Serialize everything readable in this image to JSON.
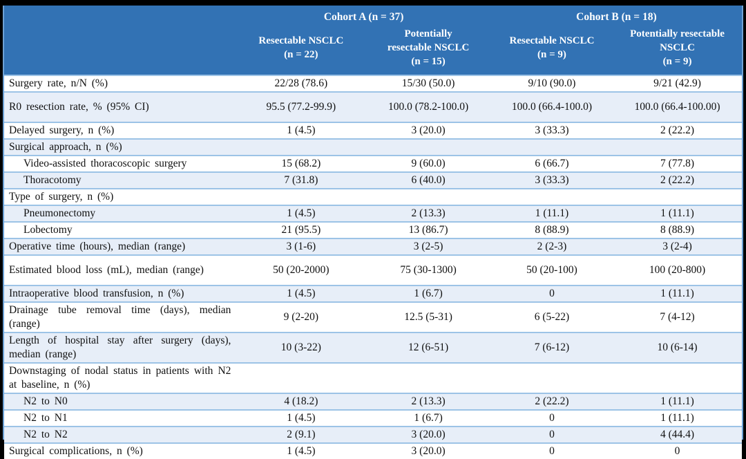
{
  "colors": {
    "header_bg": "#3272B4",
    "header_text": "#FFFFFF",
    "stripe": "#E7EEF8",
    "row_border": "#9CC3E6",
    "outer_border": "#6EA2D5",
    "body_text": "#101010",
    "page_margin": "#000000"
  },
  "table": {
    "cohort_a_title": "Cohort A (n = 37)",
    "cohort_b_title": "Cohort B (n = 18)",
    "columns": [
      "Resectable NSCLC\n(n = 22)",
      "Potentially\nresectable NSCLC\n(n = 15)",
      "Resectable NSCLC\n(n = 9)",
      "Potentially resectable\nNSCLC\n(n = 9)"
    ],
    "rows": [
      {
        "label": "Surgery rate, n/N (%)",
        "indent": false,
        "tall": false,
        "values": [
          "22/28 (78.6)",
          "15/30 (50.0)",
          "9/10 (90.0)",
          "9/21 (42.9)"
        ]
      },
      {
        "label": "R0 resection rate, % (95% CI)",
        "indent": false,
        "tall": true,
        "values": [
          "95.5 (77.2-99.9)",
          "100.0 (78.2-100.0)",
          "100.0 (66.4-100.0)",
          "100.0 (66.4-100.00)"
        ]
      },
      {
        "label": "Delayed surgery, n (%)",
        "indent": false,
        "tall": false,
        "values": [
          "1 (4.5)",
          "3 (20.0)",
          "3 (33.3)",
          "2 (22.2)"
        ]
      },
      {
        "label": "Surgical approach, n (%)",
        "indent": false,
        "tall": false,
        "values": [
          "",
          "",
          "",
          ""
        ]
      },
      {
        "label": "Video-assisted thoracoscopic surgery",
        "indent": true,
        "tall": false,
        "values": [
          "15 (68.2)",
          "9 (60.0)",
          "6 (66.7)",
          "7 (77.8)"
        ]
      },
      {
        "label": "Thoracotomy",
        "indent": true,
        "tall": false,
        "values": [
          "7 (31.8)",
          "6 (40.0)",
          "3 (33.3)",
          "2 (22.2)"
        ]
      },
      {
        "label": "Type of surgery, n (%)",
        "indent": false,
        "tall": false,
        "values": [
          "",
          "",
          "",
          ""
        ]
      },
      {
        "label": "Pneumonectomy",
        "indent": true,
        "tall": false,
        "values": [
          "1 (4.5)",
          "2 (13.3)",
          "1 (11.1)",
          "1 (11.1)"
        ]
      },
      {
        "label": "Lobectomy",
        "indent": true,
        "tall": false,
        "values": [
          "21 (95.5)",
          "13 (86.7)",
          "8 (88.9)",
          "8 (88.9)"
        ]
      },
      {
        "label": "Operative time (hours), median (range)",
        "indent": false,
        "tall": false,
        "values": [
          "3 (1-6)",
          "3 (2-5)",
          "2 (2-3)",
          "3 (2-4)"
        ]
      },
      {
        "label": "Estimated blood loss (mL), median (range)",
        "indent": false,
        "tall": true,
        "values": [
          "50 (20-2000)",
          "75 (30-1300)",
          "50 (20-100)",
          "100 (20-800)"
        ]
      },
      {
        "label": "Intraoperative blood transfusion, n (%)",
        "indent": false,
        "tall": false,
        "values": [
          "1 (4.5)",
          "1 (6.7)",
          "0",
          "1 (11.1)"
        ]
      },
      {
        "label": "Drainage tube removal time (days), median (range)",
        "indent": false,
        "tall": false,
        "values": [
          "9 (2-20)",
          "12.5 (5-31)",
          "6 (5-22)",
          "7 (4-12)"
        ]
      },
      {
        "label": "Length of hospital stay after surgery (days), median (range)",
        "indent": false,
        "tall": false,
        "values": [
          "10 (3-22)",
          "12 (6-51)",
          "7 (6-12)",
          "10 (6-14)"
        ]
      },
      {
        "label": "Downstaging of nodal status in patients with N2 at baseline, n (%)",
        "indent": false,
        "tall": false,
        "values": [
          "",
          "",
          "",
          ""
        ]
      },
      {
        "label": "N2 to N0",
        "indent": true,
        "tall": false,
        "values": [
          "4 (18.2)",
          "2 (13.3)",
          "2 (22.2)",
          "1 (11.1)"
        ]
      },
      {
        "label": "N2 to N1",
        "indent": true,
        "tall": false,
        "values": [
          "1 (4.5)",
          "1 (6.7)",
          "0",
          "1 (11.1)"
        ]
      },
      {
        "label": "N2 to N2",
        "indent": true,
        "tall": false,
        "values": [
          "2 (9.1)",
          "3 (20.0)",
          "0",
          "4 (44.4)"
        ]
      },
      {
        "label": "Surgical complications, n (%)",
        "indent": false,
        "tall": false,
        "values": [
          "1 (4.5)",
          "3 (20.0)",
          "0",
          "0"
        ]
      }
    ]
  }
}
